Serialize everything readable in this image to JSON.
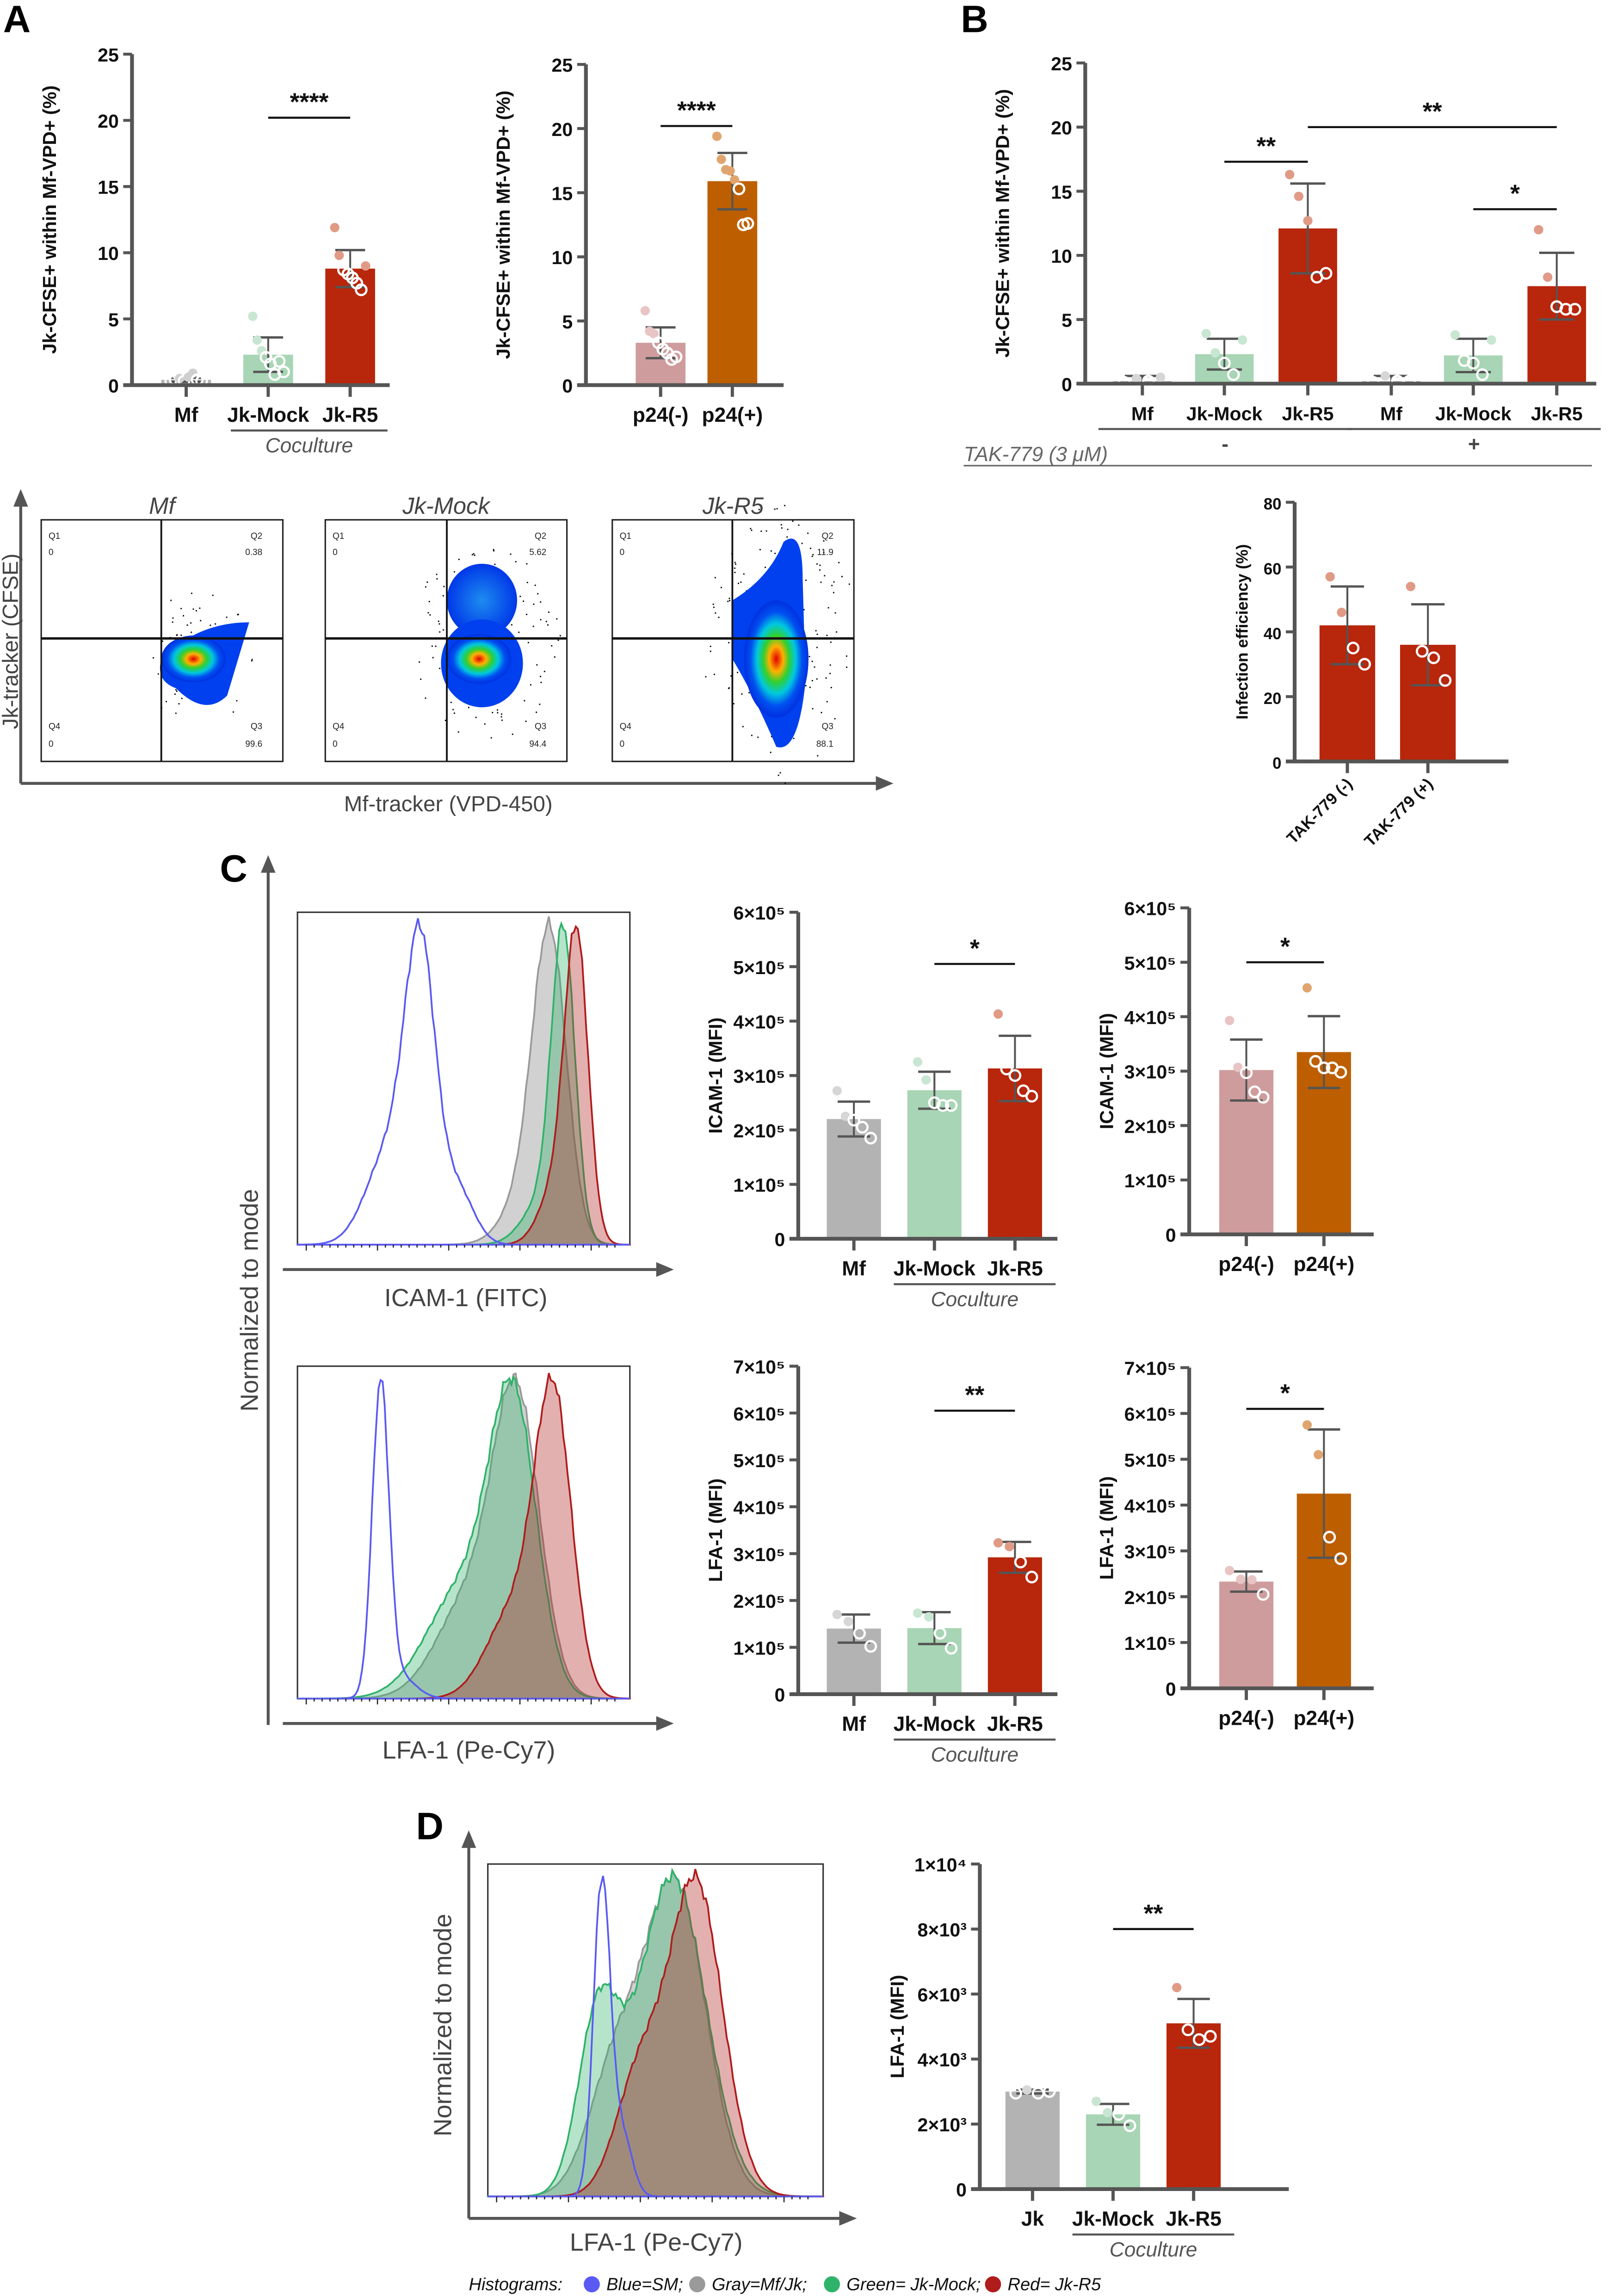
{
  "panels": {
    "a": "A",
    "b": "B",
    "c": "C",
    "d": "D"
  },
  "flow": {
    "titles": [
      "Mf",
      "Jk-Mock",
      "Jk-R5"
    ],
    "quadrants": [
      {
        "q1": "Q1",
        "q1v": "0",
        "q2": "Q2",
        "q2v": "0.38",
        "q3": "Q3",
        "q3v": "99.6",
        "q4": "Q4",
        "q4v": "0"
      },
      {
        "q1": "Q1",
        "q1v": "0",
        "q2": "Q2",
        "q2v": "5.62",
        "q3": "Q3",
        "q3v": "94.4",
        "q4": "Q4",
        "q4v": "0"
      },
      {
        "q1": "Q1",
        "q1v": "0",
        "q2": "Q2",
        "q2v": "11.9",
        "q3": "Q3",
        "q3v": "88.1",
        "q4": "Q4",
        "q4v": "0"
      }
    ],
    "y_label": "Jk-tracker (CFSE)",
    "x_label": "Mf-tracker (VPD-450)"
  },
  "histograms": {
    "c_y_label": "Normalized to mode",
    "icam_x_label": "ICAM-1 (FITC)",
    "lfa_x_label": "LFA-1 (Pe-Cy7)",
    "d_y_label": "Normalized to mode",
    "d_x_label": "LFA-1 (Pe-Cy7)"
  },
  "treatment_label": "TAK-779 (3 μM)",
  "legend": {
    "title": "Histograms:",
    "items": [
      {
        "label": "Blue=SM;",
        "color": "#5a5af2"
      },
      {
        "label": "Gray=Mf/Jk;",
        "color": "#9a9a9a"
      },
      {
        "label": "Green= Jk-Mock;",
        "color": "#2fb36a"
      },
      {
        "label": "Red= Jk-R5",
        "color": "#b01c1c"
      }
    ]
  },
  "chart_data": [
    {
      "id": "a1",
      "type": "bar",
      "ylabel": "Jk-CFSE+ within Mf-VPD+ (%)",
      "ylim": [
        0,
        25
      ],
      "ticks": [
        0,
        5,
        10,
        15,
        20,
        25
      ],
      "tick_labels": [
        "0",
        "5",
        "10",
        "15",
        "20",
        "25"
      ],
      "categories": [
        "Mf",
        "Jk-Mock",
        "Jk-R5"
      ],
      "values": [
        0.4,
        2.3,
        8.8
      ],
      "errors": [
        0.15,
        1.3,
        1.4
      ],
      "points": [
        [
          0.3,
          0.4,
          0.5,
          0.3,
          0.6,
          0.9,
          0.4,
          0.3
        ],
        [
          5.2,
          3.4,
          2.6,
          2.1,
          1.6,
          0.8,
          1.8,
          1.0
        ],
        [
          11.9,
          9.8,
          8.7,
          8.4,
          8.1,
          7.7,
          7.2,
          9.0
        ]
      ],
      "bar_colors": [
        "#b3b3b3",
        "#a8d5b5",
        "#b8260b"
      ],
      "dot_colors": [
        "#cfcfcf",
        "#c8e6d1",
        "#e09a85"
      ],
      "significance": [
        {
          "from": 1,
          "to": 2,
          "y": 20.2,
          "label": "****"
        }
      ],
      "groups": [
        {
          "from": 1,
          "to": 2,
          "label": "Coculture"
        }
      ]
    },
    {
      "id": "a2",
      "type": "bar",
      "ylabel": "Jk-CFSE+ within Mf-VPD+ (%)",
      "ylim": [
        0,
        25
      ],
      "ticks": [
        0,
        5,
        10,
        15,
        20,
        25
      ],
      "tick_labels": [
        "0",
        "5",
        "10",
        "15",
        "20",
        "25"
      ],
      "categories": [
        "p24(-)",
        "p24(+)"
      ],
      "values": [
        3.3,
        15.9
      ],
      "errors": [
        1.2,
        2.2
      ],
      "points": [
        [
          5.8,
          4.2,
          4.0,
          3.3,
          2.8,
          2.5,
          2.0,
          2.2
        ],
        [
          19.4,
          17.6,
          16.8,
          16.7,
          16.0,
          15.3,
          12.5,
          12.6
        ]
      ],
      "bar_colors": [
        "#cf9c9d",
        "#bd5f00"
      ],
      "dot_colors": [
        "#e8c4c5",
        "#e0a56e"
      ],
      "significance": [
        {
          "from": 0,
          "to": 1,
          "y": 20.2,
          "label": "****"
        }
      ],
      "groups": []
    },
    {
      "id": "b1",
      "type": "bar",
      "ylabel": "Jk-CFSE+ within Mf-VPD+ (%)",
      "ylim": [
        0,
        25
      ],
      "ticks": [
        0,
        5,
        10,
        15,
        20,
        25
      ],
      "tick_labels": [
        "0",
        "5",
        "10",
        "15",
        "20",
        "25"
      ],
      "categories": [
        "Mf",
        "Jk-Mock",
        "Jk-R5",
        "Mf",
        "Jk-Mock",
        "Jk-R5"
      ],
      "values": [
        0.2,
        2.3,
        12.1,
        0.2,
        2.2,
        7.6
      ],
      "errors": [
        0.4,
        1.2,
        3.5,
        0.4,
        1.3,
        2.6
      ],
      "points": [
        [
          0.1,
          0.4,
          0.2,
          0.5
        ],
        [
          3.9,
          2.4,
          1.6,
          0.7,
          3.4
        ],
        [
          16.3,
          14.6,
          12.7,
          8.3,
          8.6
        ],
        [
          0.1,
          0.6,
          0.2,
          0.2
        ],
        [
          3.8,
          1.8,
          1.6,
          0.7,
          3.4
        ],
        [
          12.0,
          8.3,
          6.0,
          5.8,
          5.8
        ]
      ],
      "bar_colors": [
        "#b3b3b3",
        "#a8d5b5",
        "#b8260b",
        "#b3b3b3",
        "#a8d5b5",
        "#b8260b"
      ],
      "dot_colors": [
        "#d6d6d6",
        "#c8e6d1",
        "#e09a85",
        "#d6d6d6",
        "#c8e6d1",
        "#e09a85"
      ],
      "significance": [
        {
          "from": 1,
          "to": 2,
          "y": 17.3,
          "label": "**"
        },
        {
          "from": 2,
          "to": 5,
          "y": 20.0,
          "label": "**"
        },
        {
          "from": 4,
          "to": 5,
          "y": 13.6,
          "label": "*"
        }
      ],
      "groups": [
        {
          "from": 0,
          "to": 2,
          "label": "-"
        },
        {
          "from": 3,
          "to": 5,
          "label": "+"
        }
      ]
    },
    {
      "id": "b2",
      "type": "bar",
      "ylabel": "Infection efficiency (%)",
      "ylim": [
        0,
        80
      ],
      "ticks": [
        0,
        20,
        40,
        60,
        80
      ],
      "tick_labels": [
        "0",
        "20",
        "40",
        "60",
        "80"
      ],
      "categories": [
        "TAK-779 (-)",
        "TAK-779 (+)"
      ],
      "values": [
        42,
        36
      ],
      "errors": [
        12,
        12.5
      ],
      "points": [
        [
          57,
          46,
          35,
          30
        ],
        [
          54,
          34,
          32,
          25
        ]
      ],
      "bar_colors": [
        "#b8260b",
        "#b8260b"
      ],
      "dot_colors": [
        "#e09a85",
        "#e09a85"
      ],
      "significance": [],
      "groups": []
    },
    {
      "id": "c1",
      "type": "bar",
      "ylabel": "ICAM-1 (MFI)",
      "ylim": [
        0,
        600000
      ],
      "ticks": [
        0,
        100000,
        200000,
        300000,
        400000,
        500000,
        600000
      ],
      "tick_labels": [
        "0",
        "1×10⁵",
        "2×10⁵",
        "3×10⁵",
        "4×10⁵",
        "5×10⁵",
        "6×10⁵"
      ],
      "categories": [
        "Mf",
        "Jk-Mock",
        "Jk-R5"
      ],
      "values": [
        220000,
        273000,
        313000
      ],
      "errors": [
        32000,
        34000,
        60000
      ],
      "points": [
        [
          272000,
          225000,
          218000,
          205000,
          185000
        ],
        [
          325000,
          292000,
          250000,
          245000,
          245000
        ],
        [
          413000,
          312000,
          300000,
          272000,
          262000
        ]
      ],
      "bar_colors": [
        "#b3b3b3",
        "#a8d5b5",
        "#b8260b"
      ],
      "dot_colors": [
        "#d6d6d6",
        "#c8e6d1",
        "#e09a85"
      ],
      "significance": [
        {
          "from": 1,
          "to": 2,
          "y": 505000,
          "label": "*"
        }
      ],
      "groups": [
        {
          "from": 1,
          "to": 2,
          "label": "Coculture"
        }
      ]
    },
    {
      "id": "c2",
      "type": "bar",
      "ylabel": "ICAM-1 (MFI)",
      "ylim": [
        0,
        600000
      ],
      "ticks": [
        0,
        100000,
        200000,
        300000,
        400000,
        500000,
        600000
      ],
      "tick_labels": [
        "0",
        "1×10⁵",
        "2×10⁵",
        "3×10⁵",
        "4×10⁵",
        "5×10⁵",
        "6×10⁵"
      ],
      "categories": [
        "p24(-)",
        "p24(+)"
      ],
      "values": [
        302000,
        335000
      ],
      "errors": [
        56000,
        66000
      ],
      "points": [
        [
          393000,
          307000,
          297000,
          262000,
          252000
        ],
        [
          453000,
          318000,
          306000,
          306000,
          298000
        ]
      ],
      "bar_colors": [
        "#cf9c9d",
        "#bd5f00"
      ],
      "dot_colors": [
        "#e8c4c5",
        "#e0a56e"
      ],
      "significance": [
        {
          "from": 0,
          "to": 1,
          "y": 500000,
          "label": "*"
        }
      ],
      "groups": []
    },
    {
      "id": "c3",
      "type": "bar",
      "ylabel": "LFA-1 (MFI)",
      "ylim": [
        0,
        700000
      ],
      "ticks": [
        0,
        100000,
        200000,
        300000,
        400000,
        500000,
        600000,
        700000
      ],
      "tick_labels": [
        "0",
        "1×10⁵",
        "2×10⁵",
        "3×10⁵",
        "4×10⁵",
        "5×10⁵",
        "6×10⁵",
        "7×10⁵"
      ],
      "categories": [
        "Mf",
        "Jk-Mock",
        "Jk-R5"
      ],
      "values": [
        140000,
        141000,
        292000
      ],
      "errors": [
        30000,
        34000,
        33000
      ],
      "points": [
        [
          170000,
          155000,
          130000,
          102000
        ],
        [
          173000,
          165000,
          130000,
          98000
        ],
        [
          323000,
          315000,
          282000,
          250000
        ]
      ],
      "bar_colors": [
        "#b3b3b3",
        "#a8d5b5",
        "#b8260b"
      ],
      "dot_colors": [
        "#d6d6d6",
        "#c8e6d1",
        "#e09a85"
      ],
      "significance": [
        {
          "from": 1,
          "to": 2,
          "y": 605000,
          "label": "**"
        }
      ],
      "groups": [
        {
          "from": 1,
          "to": 2,
          "label": "Coculture"
        }
      ]
    },
    {
      "id": "c4",
      "type": "bar",
      "ylabel": "LFA-1 (MFI)",
      "ylim": [
        0,
        700000
      ],
      "ticks": [
        0,
        100000,
        200000,
        300000,
        400000,
        500000,
        600000,
        700000
      ],
      "tick_labels": [
        "0",
        "1×10⁵",
        "2×10⁵",
        "3×10⁵",
        "4×10⁵",
        "5×10⁵",
        "6×10⁵",
        "7×10⁵"
      ],
      "categories": [
        "p24(-)",
        "p24(+)"
      ],
      "values": [
        233000,
        425000
      ],
      "errors": [
        22000,
        140000
      ],
      "points": [
        [
          257000,
          238000,
          237000,
          205000
        ],
        [
          575000,
          510000,
          330000,
          283000
        ]
      ],
      "bar_colors": [
        "#cf9c9d",
        "#bd5f00"
      ],
      "dot_colors": [
        "#e8c4c5",
        "#e0a56e"
      ],
      "significance": [
        {
          "from": 0,
          "to": 1,
          "y": 610000,
          "label": "*"
        }
      ],
      "groups": []
    },
    {
      "id": "d1",
      "type": "bar",
      "ylabel": "LFA-1 (MFI)",
      "ylim": [
        0,
        10000
      ],
      "ticks": [
        0,
        2000,
        4000,
        6000,
        8000,
        10000
      ],
      "tick_labels": [
        "0",
        "2×10³",
        "4×10³",
        "6×10³",
        "8×10³",
        "1×10⁴"
      ],
      "categories": [
        "Jk",
        "Jk-Mock",
        "Jk-R5"
      ],
      "values": [
        3000,
        2300,
        5100
      ],
      "errors": [
        60,
        320,
        750
      ],
      "points": [
        [
          2950,
          3050,
          2950,
          3000
        ],
        [
          2700,
          2350,
          2300,
          1950
        ],
        [
          6200,
          4900,
          4600,
          4700
        ]
      ],
      "bar_colors": [
        "#b3b3b3",
        "#a8d5b5",
        "#b8260b"
      ],
      "dot_colors": [
        "#d6d6d6",
        "#c8e6d1",
        "#e09a85"
      ],
      "significance": [
        {
          "from": 1,
          "to": 2,
          "y": 8000,
          "label": "**"
        }
      ],
      "groups": [
        {
          "from": 1,
          "to": 2,
          "label": "Coculture"
        }
      ]
    }
  ]
}
